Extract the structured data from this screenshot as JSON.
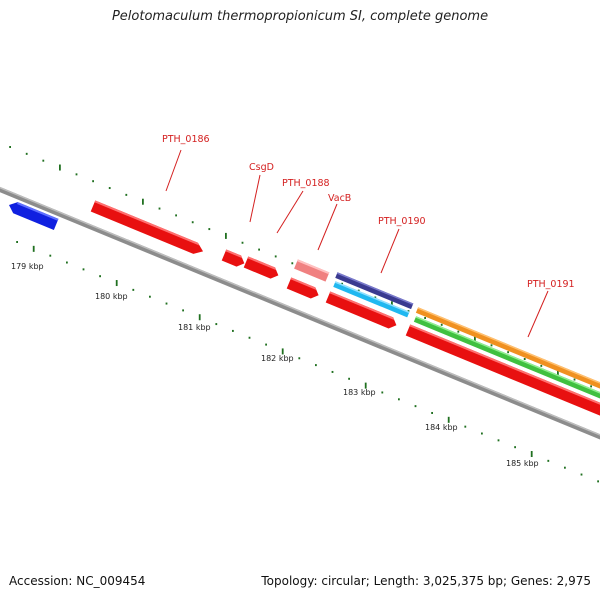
{
  "title": "Pelotomaculum thermopropionicum SI, complete genome",
  "footer": {
    "accession": "Accession: NC_009454",
    "summary": "Topology: circular; Length: 3,025,375 bp; Genes: 2,975"
  },
  "kbp_labels": [
    "179 kbp",
    "180 kbp",
    "181 kbp",
    "182 kbp",
    "183 kbp",
    "184 kbp",
    "185 kbp"
  ],
  "gene_labels": [
    "PTH_0186",
    "CsgD",
    "PTH_0188",
    "VacB",
    "PTH_0190",
    "PTH_0191"
  ],
  "colors": {
    "backbone": "#8a8a8a",
    "cds_forward": "#e81010",
    "cds_reverse": "#1020e0",
    "vacb": "#f08080",
    "track_navy": "#3a3a90",
    "track_cyan": "#20b8f0",
    "track_green": "#40c040",
    "track_orange": "#f09020",
    "tick": "#207020",
    "label": "#d42020"
  }
}
